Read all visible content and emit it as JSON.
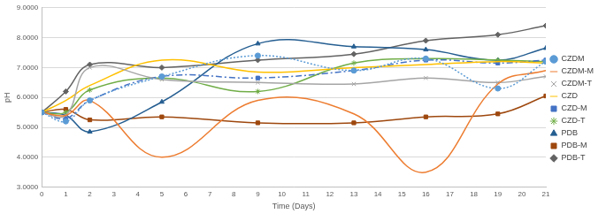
{
  "chart_data": {
    "type": "line",
    "x_label": "Time (Days)",
    "y_label": "pH",
    "x": [
      0,
      1,
      2,
      5,
      9,
      13,
      16,
      19,
      21
    ],
    "xlim": [
      0,
      21
    ],
    "xticks": [
      0,
      1,
      2,
      3,
      4,
      5,
      6,
      7,
      8,
      9,
      10,
      11,
      12,
      13,
      14,
      15,
      16,
      17,
      18,
      19,
      20,
      21
    ],
    "ylim": [
      3,
      9
    ],
    "yticks": [
      {
        "value": 3,
        "label": "3.0000"
      },
      {
        "value": 4,
        "label": "4.0000"
      },
      {
        "value": 5,
        "label": "5.0000"
      },
      {
        "value": 6,
        "label": "6.0000"
      },
      {
        "value": 7,
        "label": "7.0000"
      },
      {
        "value": 8,
        "label": "8.0000"
      },
      {
        "value": 9,
        "label": "9.0000"
      }
    ],
    "grid": "y",
    "legend": "right",
    "series": [
      {
        "name": "CZDM",
        "color": "#5b9bd5",
        "marker": "circle",
        "line_style": "dotted",
        "values": [
          5.5,
          5.2,
          5.9,
          6.7,
          7.4,
          6.9,
          7.3,
          6.3,
          7.2
        ]
      },
      {
        "name": "CZDM-M",
        "color": "#ed7d31",
        "marker": "none",
        "line_style": "solid",
        "values": [
          5.5,
          5.4,
          5.9,
          4.0,
          5.9,
          5.45,
          3.5,
          6.45,
          6.9
        ]
      },
      {
        "name": "CZDM-T",
        "color": "#a5a5a5",
        "marker": "cross",
        "line_style": "solid",
        "values": [
          5.5,
          5.4,
          7.0,
          6.6,
          6.5,
          6.45,
          6.65,
          6.5,
          6.7
        ]
      },
      {
        "name": "CZD",
        "color": "#ffc000",
        "marker": "none",
        "line_style": "solid",
        "values": [
          5.5,
          5.9,
          6.4,
          7.25,
          6.85,
          7.0,
          7.1,
          7.2,
          7.15
        ]
      },
      {
        "name": "CZD-M",
        "color": "#4472c4",
        "marker": "square",
        "line_style": "dashdot",
        "values": [
          5.5,
          5.3,
          5.9,
          6.7,
          6.65,
          6.9,
          7.25,
          7.15,
          7.25
        ]
      },
      {
        "name": "CZD-T",
        "color": "#70ad47",
        "marker": "star",
        "line_style": "solid",
        "values": [
          5.5,
          5.5,
          6.25,
          6.65,
          6.2,
          7.15,
          7.3,
          7.25,
          7.2
        ]
      },
      {
        "name": "PDB",
        "color": "#255e91",
        "marker": "triangle",
        "line_style": "solid",
        "values": [
          5.5,
          5.4,
          4.85,
          5.85,
          7.8,
          7.7,
          7.6,
          7.25,
          7.65
        ]
      },
      {
        "name": "PDB-M",
        "color": "#9e480e",
        "marker": "square",
        "line_style": "solid",
        "values": [
          5.5,
          5.6,
          5.25,
          5.35,
          5.15,
          5.15,
          5.35,
          5.45,
          6.05
        ]
      },
      {
        "name": "PDB-T",
        "color": "#636363",
        "marker": "diamond",
        "line_style": "solid",
        "values": [
          5.5,
          6.2,
          7.1,
          7.0,
          7.25,
          7.45,
          7.9,
          8.1,
          8.4
        ]
      }
    ]
  }
}
